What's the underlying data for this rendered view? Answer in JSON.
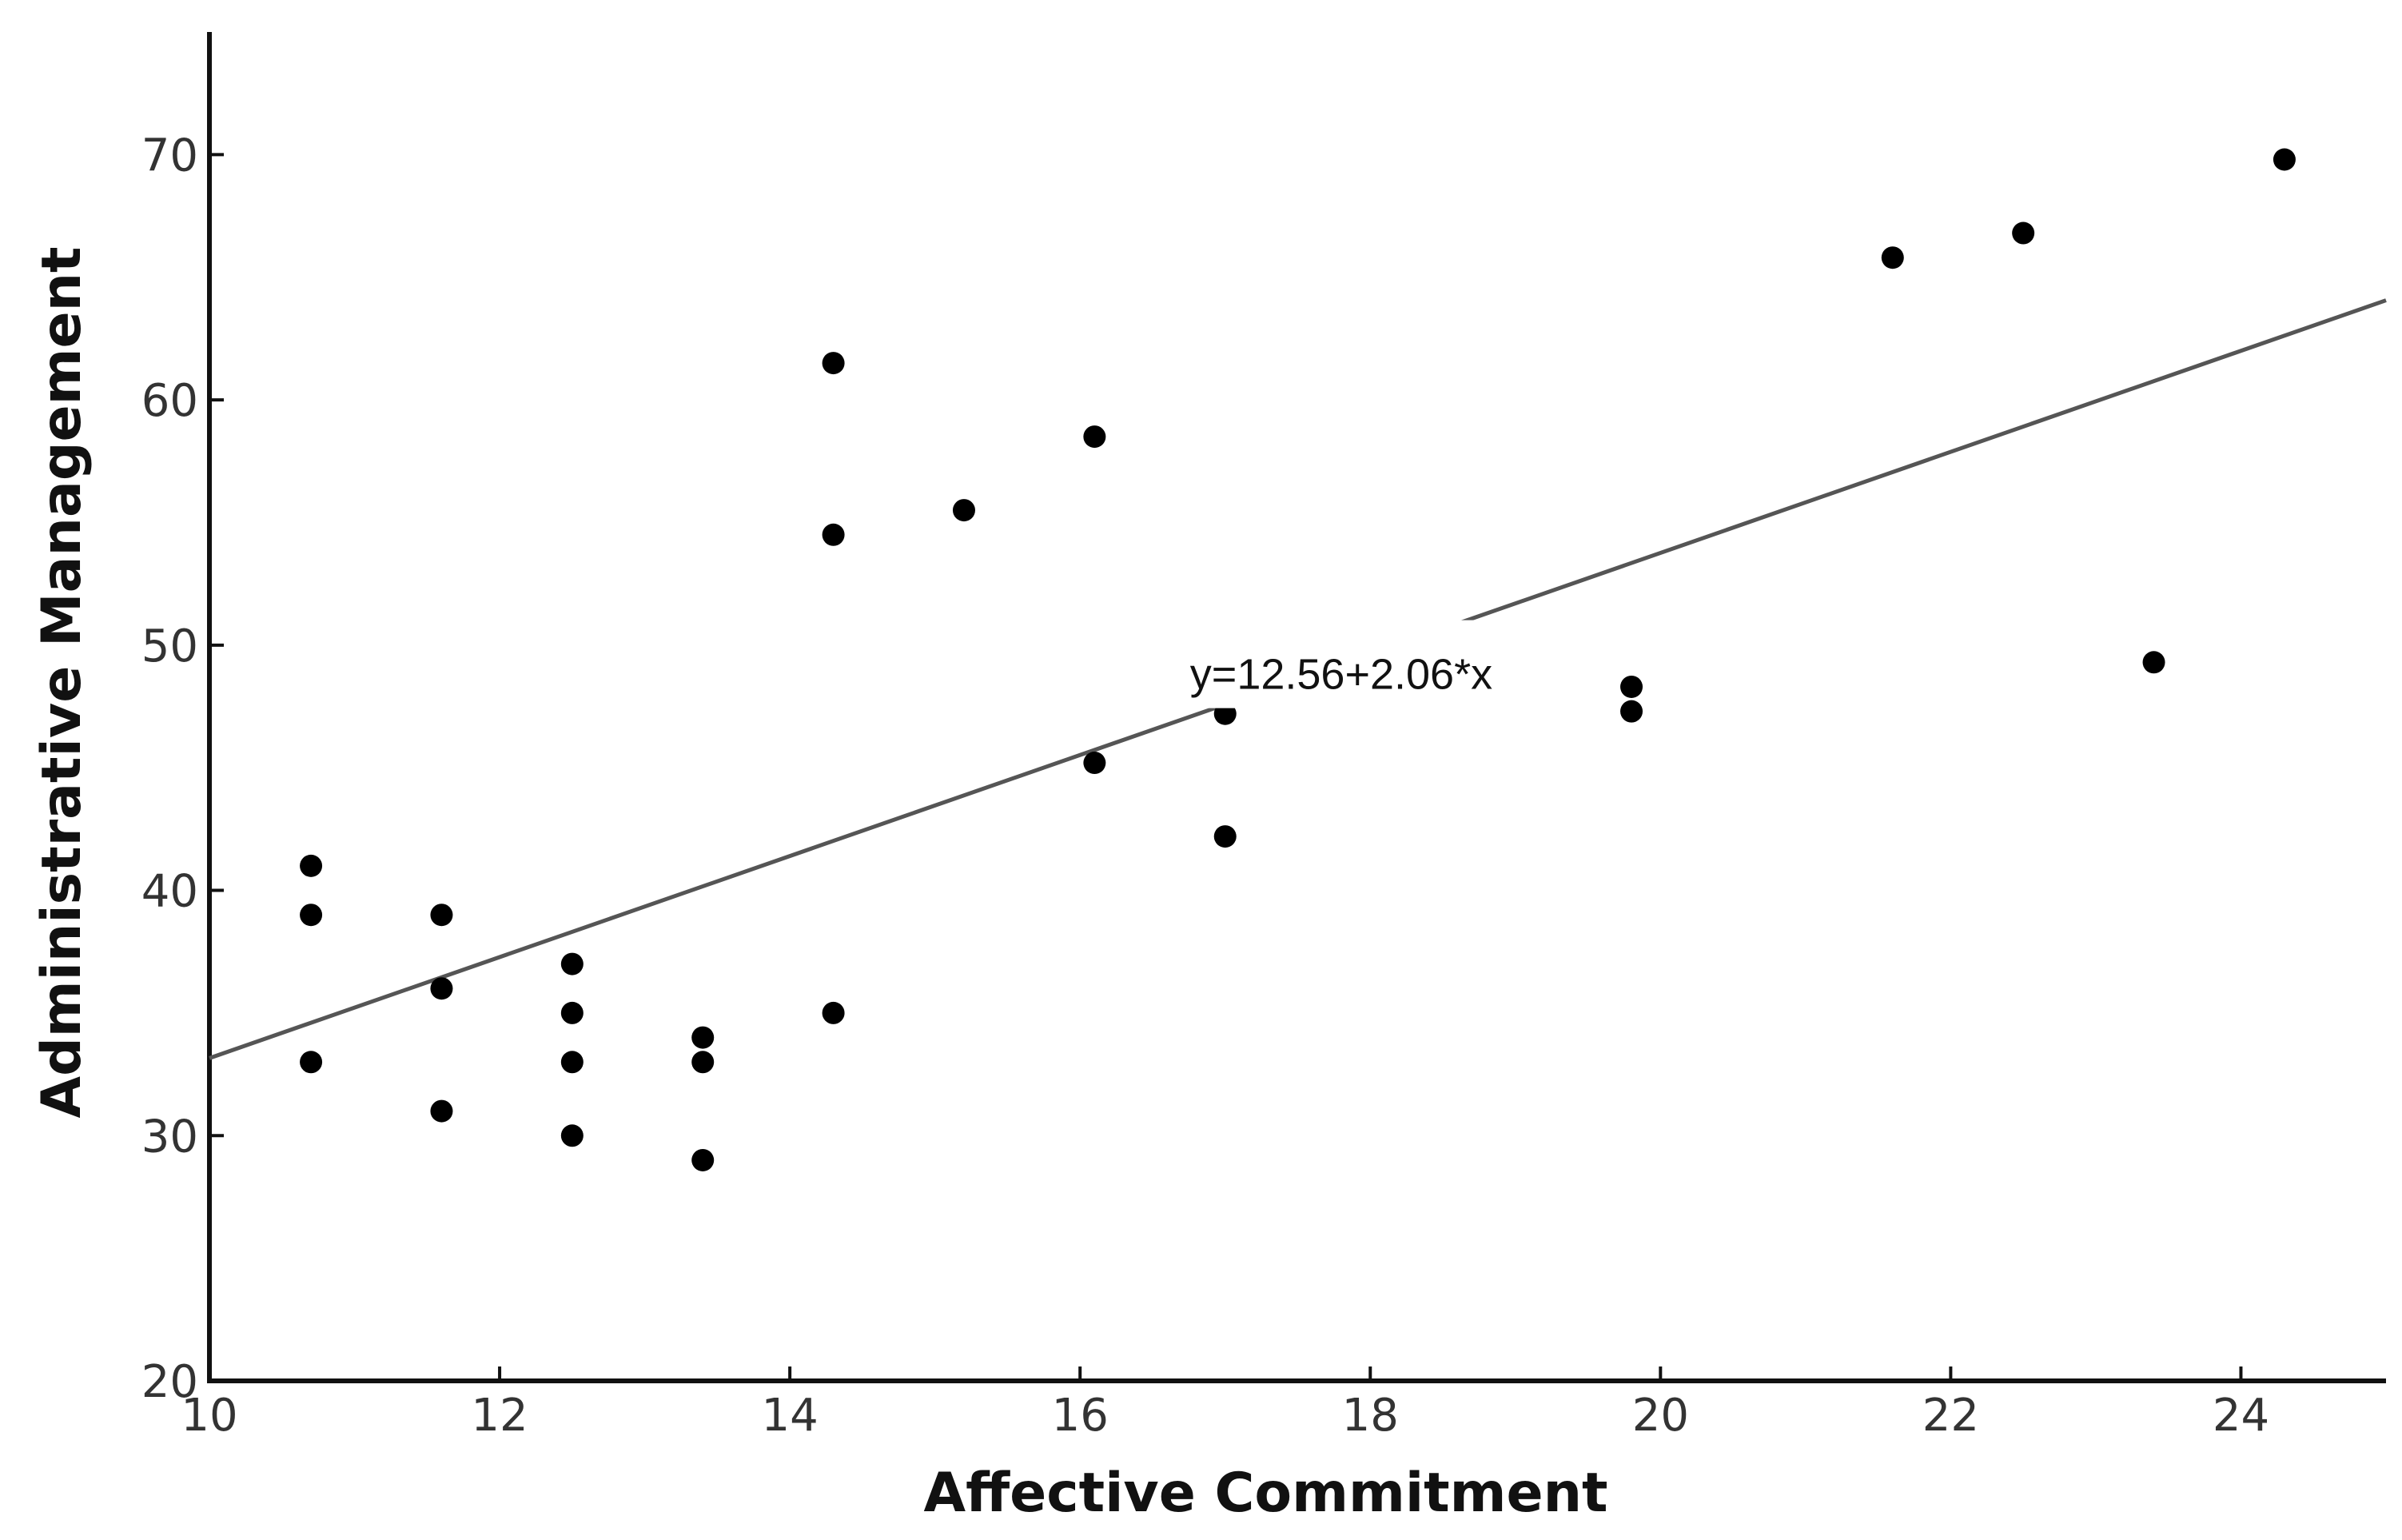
{
  "chart_data": {
    "type": "scatter",
    "title": "",
    "xlabel": "Affective Commitment",
    "ylabel": "Administrative Management",
    "xlim": [
      10,
      25
    ],
    "ylim": [
      20,
      75
    ],
    "x_ticks": [
      10,
      12,
      14,
      16,
      18,
      20,
      22,
      24
    ],
    "y_ticks": [
      20,
      30,
      40,
      50,
      60,
      70
    ],
    "grid": false,
    "legend": "none",
    "point_color": "#000000",
    "line_color": "#555555",
    "points": [
      {
        "x": 10.7,
        "y": 41
      },
      {
        "x": 10.7,
        "y": 39
      },
      {
        "x": 10.7,
        "y": 33
      },
      {
        "x": 11.6,
        "y": 39
      },
      {
        "x": 11.6,
        "y": 36
      },
      {
        "x": 11.6,
        "y": 31
      },
      {
        "x": 12.5,
        "y": 37
      },
      {
        "x": 12.5,
        "y": 35
      },
      {
        "x": 12.5,
        "y": 33
      },
      {
        "x": 12.5,
        "y": 30
      },
      {
        "x": 13.4,
        "y": 34
      },
      {
        "x": 13.4,
        "y": 33
      },
      {
        "x": 13.4,
        "y": 29
      },
      {
        "x": 14.3,
        "y": 61.5
      },
      {
        "x": 14.3,
        "y": 54.5
      },
      {
        "x": 14.3,
        "y": 35
      },
      {
        "x": 15.2,
        "y": 55.5
      },
      {
        "x": 16.1,
        "y": 58.5
      },
      {
        "x": 16.1,
        "y": 45.2
      },
      {
        "x": 17.0,
        "y": 47.2
      },
      {
        "x": 17.0,
        "y": 42.2
      },
      {
        "x": 19.8,
        "y": 48.3
      },
      {
        "x": 19.8,
        "y": 47.3
      },
      {
        "x": 21.6,
        "y": 65.8
      },
      {
        "x": 22.5,
        "y": 66.8
      },
      {
        "x": 23.4,
        "y": 49.3
      },
      {
        "x": 24.3,
        "y": 69.8
      }
    ],
    "fit_line": {
      "intercept": 12.56,
      "slope": 2.06,
      "x_range": [
        10,
        25
      ],
      "equation_label": "y=12.56+2.06*x",
      "label_x": 17.8,
      "label_y": 48.8
    }
  }
}
